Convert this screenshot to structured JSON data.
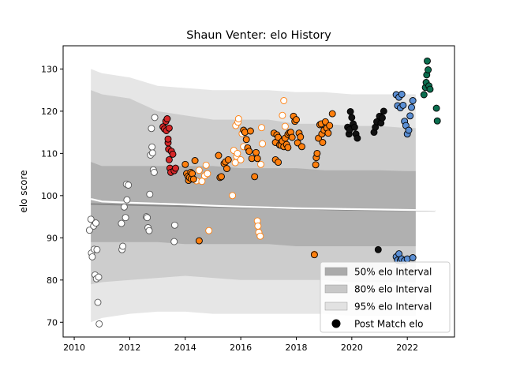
{
  "chart_data": {
    "type": "scatter",
    "title": "Shaun Venter: elo History",
    "xlabel": "",
    "ylabel": "elo score",
    "xlim": [
      2009.6,
      2023.7
    ],
    "ylim": [
      66.5,
      135.5
    ],
    "x_ticks": [
      2010,
      2012,
      2014,
      2016,
      2018,
      2020,
      2022
    ],
    "y_ticks": [
      70,
      80,
      90,
      100,
      110,
      120,
      130
    ],
    "legend_position": "lower right",
    "legend": [
      {
        "label": "50% elo Interval",
        "kind": "band",
        "color": "#aaaaaa"
      },
      {
        "label": "80% elo Interval",
        "kind": "band",
        "color": "#c8c8c8"
      },
      {
        "label": "95% elo Interval",
        "kind": "band",
        "color": "#e2e2e2"
      },
      {
        "label": "Post Match elo",
        "kind": "marker",
        "color": "#000000"
      }
    ],
    "bands": {
      "x": [
        2010.6,
        2011.0,
        2012.0,
        2013.0,
        2014.0,
        2015.0,
        2016.0,
        2017.0,
        2018.0,
        2019.0,
        2020.0,
        2021.0,
        2022.0,
        2022.3
      ],
      "p50_upper": [
        108,
        107,
        107,
        107,
        107,
        107,
        106.5,
        106.5,
        106.5,
        106,
        106,
        106,
        105.8,
        105.8
      ],
      "p50_lower": [
        89,
        89,
        89,
        89,
        88.5,
        88.5,
        88.5,
        88.5,
        88,
        88,
        88,
        88,
        88,
        88
      ],
      "p80_upper": [
        125,
        124,
        123,
        120,
        119,
        118,
        118,
        118,
        117,
        117,
        116.5,
        116.5,
        116,
        116
      ],
      "p80_lower": [
        79,
        79.5,
        80,
        80.5,
        81,
        80.5,
        80,
        80,
        80,
        80,
        79.5,
        79.5,
        79.5,
        79.5
      ],
      "p95_upper": [
        130,
        129,
        128,
        126,
        125.5,
        125,
        125,
        125,
        124.5,
        124.5,
        124,
        124,
        124,
        124
      ],
      "p95_lower": [
        70,
        71,
        72,
        72.5,
        72.5,
        72,
        72,
        72,
        72,
        72,
        71.5,
        71.5,
        71.5,
        71.5
      ]
    },
    "mean_line": {
      "color": "#ffffff",
      "x": [
        2010.6,
        2011.0,
        2012.0,
        2013.0,
        2014.0,
        2015.0,
        2016.0,
        2017.0,
        2018.0,
        2019.0,
        2020.0,
        2021.0,
        2022.0,
        2023.0
      ],
      "y": [
        99.2,
        98.6,
        98.3,
        98.1,
        97.9,
        97.6,
        97.4,
        97.2,
        97.0,
        96.9,
        96.8,
        96.7,
        96.6,
        96.5
      ]
    },
    "trend_line": {
      "color": "#888888",
      "x": [
        2010.6,
        2012.0,
        2014.0,
        2016.0,
        2018.0,
        2020.0,
        2022.0,
        2023.0
      ],
      "y": [
        98.0,
        97.8,
        97.5,
        97.2,
        96.9,
        96.6,
        96.5,
        96.4
      ]
    },
    "series": [
      {
        "color": "#ffffff",
        "points": [
          [
            2010.55,
            91.8
          ],
          [
            2010.6,
            94.4
          ],
          [
            2010.62,
            86.4
          ],
          [
            2010.65,
            85.5
          ],
          [
            2010.7,
            92.8
          ],
          [
            2010.72,
            87.3
          ],
          [
            2010.75,
            81.2
          ],
          [
            2010.78,
            93.5
          ],
          [
            2010.8,
            80.3
          ],
          [
            2010.82,
            87.2
          ],
          [
            2010.85,
            74.7
          ],
          [
            2010.88,
            80.7
          ],
          [
            2010.9,
            69.6
          ],
          [
            2011.7,
            93.4
          ],
          [
            2011.72,
            87.2
          ],
          [
            2011.75,
            88.0
          ],
          [
            2011.8,
            97.3
          ],
          [
            2011.85,
            94.8
          ],
          [
            2011.88,
            102.7
          ],
          [
            2011.9,
            99.0
          ],
          [
            2011.95,
            102.5
          ],
          [
            2012.6,
            95.0
          ],
          [
            2012.63,
            94.8
          ],
          [
            2012.66,
            92.4
          ],
          [
            2012.7,
            91.7
          ],
          [
            2012.72,
            100.3
          ],
          [
            2012.75,
            109.6
          ],
          [
            2012.78,
            115.9
          ],
          [
            2012.8,
            111.5
          ],
          [
            2012.82,
            110.1
          ],
          [
            2012.85,
            106.1
          ],
          [
            2012.88,
            105.5
          ],
          [
            2012.9,
            118.5
          ],
          [
            2013.6,
            89.1
          ],
          [
            2013.62,
            93.0
          ]
        ]
      },
      {
        "color": "#d62728",
        "points": [
          [
            2013.2,
            116.3
          ],
          [
            2013.25,
            115.8
          ],
          [
            2013.3,
            117.6
          ],
          [
            2013.32,
            115.4
          ],
          [
            2013.35,
            118.2
          ],
          [
            2013.38,
            112.5
          ],
          [
            2013.4,
            111.0
          ],
          [
            2013.42,
            108.5
          ],
          [
            2013.45,
            106.5
          ],
          [
            2013.48,
            105.5
          ],
          [
            2013.5,
            110.5
          ],
          [
            2013.55,
            109.8
          ],
          [
            2013.6,
            105.9
          ],
          [
            2013.65,
            106.5
          ],
          [
            2013.38,
            113.4
          ],
          [
            2013.42,
            116.0
          ]
        ]
      },
      {
        "color": "#ffffff",
        "edge": "#ff7f0e",
        "points": [
          [
            2014.4,
            103.5
          ],
          [
            2014.5,
            106.0
          ],
          [
            2014.6,
            103.4
          ],
          [
            2014.7,
            104.7
          ],
          [
            2014.75,
            107.2
          ],
          [
            2014.8,
            105.2
          ],
          [
            2014.85,
            91.7
          ],
          [
            2015.7,
            100.0
          ],
          [
            2015.75,
            110.7
          ],
          [
            2015.8,
            107.8
          ],
          [
            2015.82,
            116.6
          ],
          [
            2015.85,
            109.3
          ],
          [
            2015.88,
            110.0
          ],
          [
            2015.9,
            117.4
          ],
          [
            2015.92,
            118.2
          ],
          [
            2016.0,
            108.5
          ],
          [
            2016.05,
            114.7
          ],
          [
            2016.1,
            111.6
          ],
          [
            2016.6,
            94.0
          ],
          [
            2016.62,
            92.8
          ],
          [
            2016.65,
            91.3
          ],
          [
            2016.7,
            90.4
          ],
          [
            2016.72,
            107.4
          ],
          [
            2016.75,
            116.1
          ],
          [
            2016.78,
            112.3
          ],
          [
            2017.5,
            119.0
          ],
          [
            2017.55,
            122.5
          ],
          [
            2017.6,
            116.4
          ],
          [
            2018.65,
            86.1
          ]
        ]
      },
      {
        "color": "#ff7f0e",
        "points": [
          [
            2014.0,
            107.4
          ],
          [
            2014.05,
            105.2
          ],
          [
            2014.1,
            104.6
          ],
          [
            2014.12,
            103.6
          ],
          [
            2014.15,
            104.3
          ],
          [
            2014.2,
            105.5
          ],
          [
            2014.22,
            104.0
          ],
          [
            2014.25,
            105.2
          ],
          [
            2014.3,
            103.9
          ],
          [
            2014.35,
            108.3
          ],
          [
            2014.5,
            89.3
          ],
          [
            2015.2,
            109.5
          ],
          [
            2015.25,
            104.3
          ],
          [
            2015.3,
            104.5
          ],
          [
            2015.4,
            107.6
          ],
          [
            2015.45,
            108.0
          ],
          [
            2015.5,
            106.4
          ],
          [
            2015.55,
            108.5
          ],
          [
            2016.1,
            115.5
          ],
          [
            2016.15,
            115.0
          ],
          [
            2016.2,
            113.3
          ],
          [
            2016.25,
            111.3
          ],
          [
            2016.3,
            110.5
          ],
          [
            2016.35,
            115.3
          ],
          [
            2016.4,
            108.8
          ],
          [
            2016.5,
            104.5
          ],
          [
            2016.55,
            110.2
          ],
          [
            2016.6,
            108.8
          ],
          [
            2017.2,
            114.8
          ],
          [
            2017.25,
            112.6
          ],
          [
            2017.3,
            114.4
          ],
          [
            2017.35,
            113.8
          ],
          [
            2017.4,
            112.0
          ],
          [
            2017.45,
            111.9
          ],
          [
            2017.5,
            112.9
          ],
          [
            2017.55,
            111.6
          ],
          [
            2017.6,
            113.6
          ],
          [
            2017.65,
            112.1
          ],
          [
            2017.7,
            114.5
          ],
          [
            2017.25,
            108.5
          ],
          [
            2017.35,
            107.9
          ],
          [
            2017.7,
            111.4
          ],
          [
            2017.75,
            114.9
          ],
          [
            2017.8,
            115.0
          ],
          [
            2017.85,
            113.8
          ],
          [
            2017.9,
            118.8
          ],
          [
            2017.95,
            117.6
          ],
          [
            2018.0,
            118.0
          ],
          [
            2018.05,
            112.5
          ],
          [
            2018.1,
            114.8
          ],
          [
            2018.15,
            113.9
          ],
          [
            2018.2,
            111.6
          ],
          [
            2018.7,
            107.3
          ],
          [
            2018.72,
            109.0
          ],
          [
            2018.75,
            110.0
          ],
          [
            2018.8,
            113.6
          ],
          [
            2018.85,
            116.8
          ],
          [
            2018.9,
            117.0
          ],
          [
            2018.92,
            114.6
          ],
          [
            2018.95,
            112.6
          ],
          [
            2019.0,
            115.5
          ],
          [
            2019.05,
            117.5
          ],
          [
            2019.1,
            116.0
          ],
          [
            2019.15,
            114.8
          ],
          [
            2019.2,
            116.6
          ],
          [
            2019.3,
            119.4
          ],
          [
            2018.65,
            86.0
          ]
        ]
      },
      {
        "color": "#111111",
        "points": [
          [
            2019.85,
            116.2
          ],
          [
            2019.9,
            114.6
          ],
          [
            2019.92,
            115.6
          ],
          [
            2019.95,
            119.9
          ],
          [
            2020.0,
            118.5
          ],
          [
            2020.05,
            117.0
          ],
          [
            2020.1,
            116.2
          ],
          [
            2020.15,
            114.6
          ],
          [
            2020.2,
            113.6
          ],
          [
            2020.8,
            115.0
          ],
          [
            2020.85,
            116.2
          ],
          [
            2020.9,
            117.5
          ],
          [
            2020.95,
            87.2
          ],
          [
            2021.0,
            118.8
          ],
          [
            2021.05,
            117.2
          ],
          [
            2021.1,
            118.4
          ],
          [
            2021.15,
            120.0
          ]
        ]
      },
      {
        "color": "#5b8fd4",
        "points": [
          [
            2021.6,
            123.9
          ],
          [
            2021.65,
            121.3
          ],
          [
            2021.7,
            123.3
          ],
          [
            2021.75,
            120.8
          ],
          [
            2021.8,
            124.0
          ],
          [
            2021.85,
            121.4
          ],
          [
            2021.9,
            117.6
          ],
          [
            2021.95,
            116.6
          ],
          [
            2022.0,
            114.6
          ],
          [
            2022.05,
            115.5
          ],
          [
            2022.1,
            118.9
          ],
          [
            2022.15,
            120.9
          ],
          [
            2022.2,
            122.5
          ],
          [
            2021.6,
            85.5
          ],
          [
            2021.65,
            84.7
          ],
          [
            2021.7,
            86.2
          ],
          [
            2021.75,
            84.6
          ],
          [
            2021.8,
            85.0
          ],
          [
            2021.9,
            84.6
          ],
          [
            2022.0,
            85.0
          ],
          [
            2022.2,
            85.3
          ]
        ]
      },
      {
        "color": "#0b6e4f",
        "points": [
          [
            2022.6,
            123.9
          ],
          [
            2022.65,
            125.6
          ],
          [
            2022.68,
            126.8
          ],
          [
            2022.7,
            128.6
          ],
          [
            2022.72,
            131.9
          ],
          [
            2022.75,
            129.8
          ],
          [
            2022.78,
            126.0
          ],
          [
            2022.82,
            125.2
          ],
          [
            2023.05,
            120.7
          ],
          [
            2023.08,
            117.7
          ]
        ]
      }
    ]
  }
}
